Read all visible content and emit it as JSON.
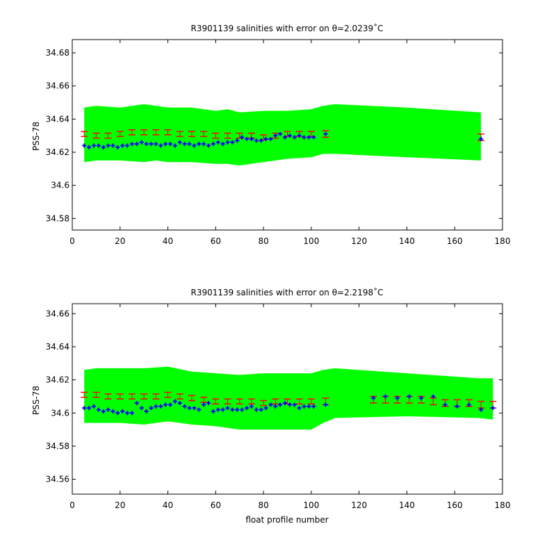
{
  "chart_data": [
    {
      "type": "scatter",
      "title": "R3901139 salinities with error on θ=2.0239˚C",
      "xlabel": "",
      "ylabel": "PSS-78",
      "xlim": [
        0,
        180
      ],
      "ylim": [
        34.573,
        34.688
      ],
      "xticks": [
        0,
        20,
        40,
        60,
        80,
        100,
        120,
        140,
        160,
        180
      ],
      "yticks": [
        34.58,
        34.6,
        34.62,
        34.64,
        34.66,
        34.68
      ],
      "xtick_labels": [
        "0",
        "20",
        "40",
        "60",
        "80",
        "100",
        "120",
        "140",
        "160",
        "180"
      ],
      "ytick_labels": [
        "34.58",
        "34.6",
        "34.62",
        "34.64",
        "34.66",
        "34.68"
      ],
      "grid": false,
      "colors": {
        "band": "#00ff00",
        "float": "#0000ff",
        "mapped": "#ff0000"
      },
      "band": {
        "x": [
          5,
          10,
          20,
          30,
          35,
          40,
          50,
          60,
          65,
          70,
          80,
          90,
          100,
          105,
          110,
          140,
          171
        ],
        "upper": [
          34.647,
          34.648,
          34.647,
          34.649,
          34.648,
          34.647,
          34.647,
          34.645,
          34.646,
          34.644,
          34.645,
          34.645,
          34.646,
          34.648,
          34.649,
          34.647,
          34.644
        ],
        "lower": [
          34.614,
          34.615,
          34.615,
          34.614,
          34.615,
          34.614,
          34.614,
          34.613,
          34.613,
          34.612,
          34.614,
          34.616,
          34.617,
          34.619,
          34.619,
          34.617,
          34.615
        ]
      },
      "series": [
        {
          "x": [
            5,
            7,
            9,
            11,
            13,
            15,
            17,
            19,
            21,
            23,
            25,
            27,
            29,
            31,
            33,
            35,
            37,
            39,
            41,
            43,
            45,
            47,
            49,
            51,
            53,
            55,
            57,
            59,
            61,
            63,
            65,
            67,
            69,
            71,
            73,
            75,
            77,
            79,
            81,
            83,
            85,
            87,
            89,
            91,
            93,
            95,
            97,
            99,
            101,
            106,
            171
          ],
          "values": [
            34.624,
            34.623,
            34.624,
            34.624,
            34.623,
            34.624,
            34.624,
            34.623,
            34.624,
            34.624,
            34.625,
            34.625,
            34.626,
            34.625,
            34.625,
            34.625,
            34.624,
            34.625,
            34.625,
            34.624,
            34.626,
            34.625,
            34.625,
            34.624,
            34.625,
            34.625,
            34.624,
            34.625,
            34.626,
            34.625,
            34.626,
            34.626,
            34.627,
            34.629,
            34.628,
            34.628,
            34.627,
            34.627,
            34.628,
            34.628,
            34.63,
            34.631,
            34.629,
            34.63,
            34.629,
            34.63,
            34.629,
            34.629,
            34.629,
            34.631,
            34.628
          ]
        },
        {
          "x": [
            5,
            10,
            15,
            20,
            25,
            30,
            35,
            40,
            45,
            50,
            55,
            60,
            65,
            70,
            75,
            80,
            85,
            90,
            95,
            100,
            106,
            171
          ],
          "values": [
            34.631,
            34.63,
            34.63,
            34.631,
            34.632,
            34.632,
            34.632,
            34.632,
            34.631,
            34.631,
            34.631,
            34.63,
            34.63,
            34.63,
            34.63,
            34.629,
            34.63,
            34.631,
            34.631,
            34.631,
            34.631,
            34.629
          ],
          "error": [
            0.0015,
            0.0015,
            0.0015,
            0.0015,
            0.0015,
            0.0015,
            0.0015,
            0.0015,
            0.0015,
            0.0015,
            0.0015,
            0.0015,
            0.0015,
            0.0015,
            0.0015,
            0.0015,
            0.0015,
            0.0015,
            0.0015,
            0.0015,
            0.002,
            0.002
          ]
        }
      ]
    },
    {
      "type": "scatter",
      "title": "R3901139 salinities with error on θ=2.2198˚C",
      "xlabel": "float profile number",
      "ylabel": "PSS-78",
      "xlim": [
        0,
        180
      ],
      "ylim": [
        34.551,
        34.666
      ],
      "xticks": [
        0,
        20,
        40,
        60,
        80,
        100,
        120,
        140,
        160,
        180
      ],
      "yticks": [
        34.56,
        34.58,
        34.6,
        34.62,
        34.64,
        34.66
      ],
      "xtick_labels": [
        "0",
        "20",
        "40",
        "60",
        "80",
        "100",
        "120",
        "140",
        "160",
        "180"
      ],
      "ytick_labels": [
        "34.56",
        "34.58",
        "34.6",
        "34.62",
        "34.64",
        "34.66"
      ],
      "grid": false,
      "colors": {
        "band": "#00ff00",
        "float": "#0000ff",
        "mapped": "#ff0000"
      },
      "band": {
        "x": [
          5,
          10,
          20,
          30,
          40,
          50,
          60,
          70,
          80,
          90,
          100,
          105,
          110,
          140,
          170,
          176
        ],
        "upper": [
          34.626,
          34.627,
          34.627,
          34.627,
          34.628,
          34.625,
          34.624,
          34.623,
          34.624,
          34.624,
          34.624,
          34.626,
          34.627,
          34.624,
          34.621,
          34.621
        ],
        "lower": [
          34.594,
          34.594,
          34.594,
          34.593,
          34.595,
          34.593,
          34.592,
          34.59,
          34.59,
          34.59,
          34.59,
          34.594,
          34.597,
          34.598,
          34.597,
          34.596
        ]
      },
      "series": [
        {
          "x": [
            5,
            7,
            9,
            11,
            13,
            15,
            17,
            19,
            21,
            23,
            25,
            27,
            29,
            31,
            33,
            35,
            37,
            39,
            41,
            43,
            45,
            47,
            49,
            51,
            53,
            55,
            57,
            59,
            61,
            63,
            65,
            67,
            69,
            71,
            73,
            75,
            77,
            79,
            81,
            83,
            85,
            87,
            89,
            91,
            93,
            95,
            97,
            99,
            101,
            106,
            126,
            131,
            136,
            141,
            146,
            151,
            156,
            161,
            166,
            171,
            176
          ],
          "values": [
            34.603,
            34.603,
            34.604,
            34.602,
            34.601,
            34.602,
            34.601,
            34.6,
            34.601,
            34.6,
            34.6,
            34.606,
            34.603,
            34.601,
            34.603,
            34.604,
            34.604,
            34.605,
            34.605,
            34.607,
            34.606,
            34.604,
            34.603,
            34.603,
            34.602,
            34.605,
            34.606,
            34.601,
            34.602,
            34.602,
            34.603,
            34.602,
            34.602,
            34.602,
            34.603,
            34.604,
            34.602,
            34.602,
            34.603,
            34.605,
            34.604,
            34.605,
            34.606,
            34.605,
            34.605,
            34.603,
            34.604,
            34.604,
            34.604,
            34.605,
            34.609,
            34.61,
            34.609,
            34.61,
            34.609,
            34.61,
            34.605,
            34.604,
            34.605,
            34.602,
            34.603
          ]
        },
        {
          "x": [
            5,
            10,
            15,
            20,
            25,
            30,
            35,
            40,
            45,
            50,
            55,
            60,
            65,
            70,
            75,
            80,
            85,
            90,
            95,
            100,
            106,
            126,
            131,
            136,
            141,
            146,
            151,
            156,
            161,
            166,
            171,
            176
          ],
          "values": [
            34.611,
            34.611,
            34.61,
            34.61,
            34.61,
            34.61,
            34.61,
            34.611,
            34.61,
            34.609,
            34.608,
            34.607,
            34.607,
            34.607,
            34.607,
            34.606,
            34.607,
            34.607,
            34.607,
            34.607,
            34.607,
            34.608,
            34.608,
            34.608,
            34.608,
            34.608,
            34.607,
            34.606,
            34.606,
            34.606,
            34.605,
            34.605
          ],
          "error": [
            0.0015,
            0.0015,
            0.0015,
            0.0015,
            0.0015,
            0.0015,
            0.0015,
            0.0015,
            0.0015,
            0.0015,
            0.0015,
            0.0015,
            0.0015,
            0.0015,
            0.0015,
            0.0015,
            0.0015,
            0.0015,
            0.0015,
            0.0015,
            0.002,
            0.002,
            0.002,
            0.002,
            0.002,
            0.002,
            0.002,
            0.002,
            0.002,
            0.002,
            0.002,
            0.002
          ]
        }
      ]
    }
  ]
}
